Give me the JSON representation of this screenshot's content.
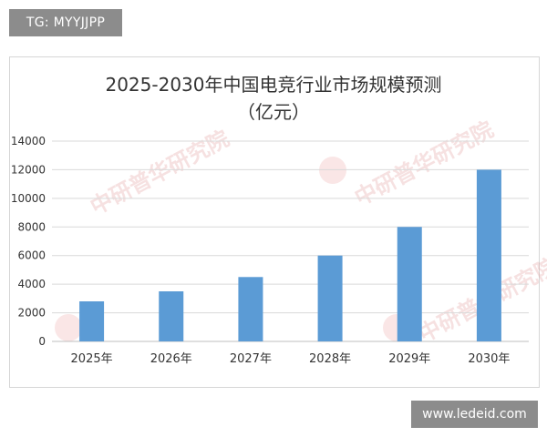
{
  "tags": {
    "top": "TG: MYYJJPP",
    "bottom": "www.ledeid.com"
  },
  "chart_data": {
    "type": "bar",
    "title": "2025-2030年中国电竞行业市场规模预测",
    "subtitle": "（亿元）",
    "categories": [
      "2025年",
      "2026年",
      "2027年",
      "2028年",
      "2029年",
      "2030年"
    ],
    "values": [
      2800,
      3500,
      4500,
      6000,
      8000,
      12000
    ],
    "ylim": [
      0,
      14000
    ],
    "yticks": [
      0,
      2000,
      4000,
      6000,
      8000,
      10000,
      12000,
      14000
    ],
    "xlabel": "",
    "ylabel": "",
    "grid": true,
    "legend": "none",
    "bar_color": "#5b9bd5"
  },
  "watermarks": [
    "中研普华研究院",
    "中研普华研究院",
    "中研普华研究院"
  ]
}
